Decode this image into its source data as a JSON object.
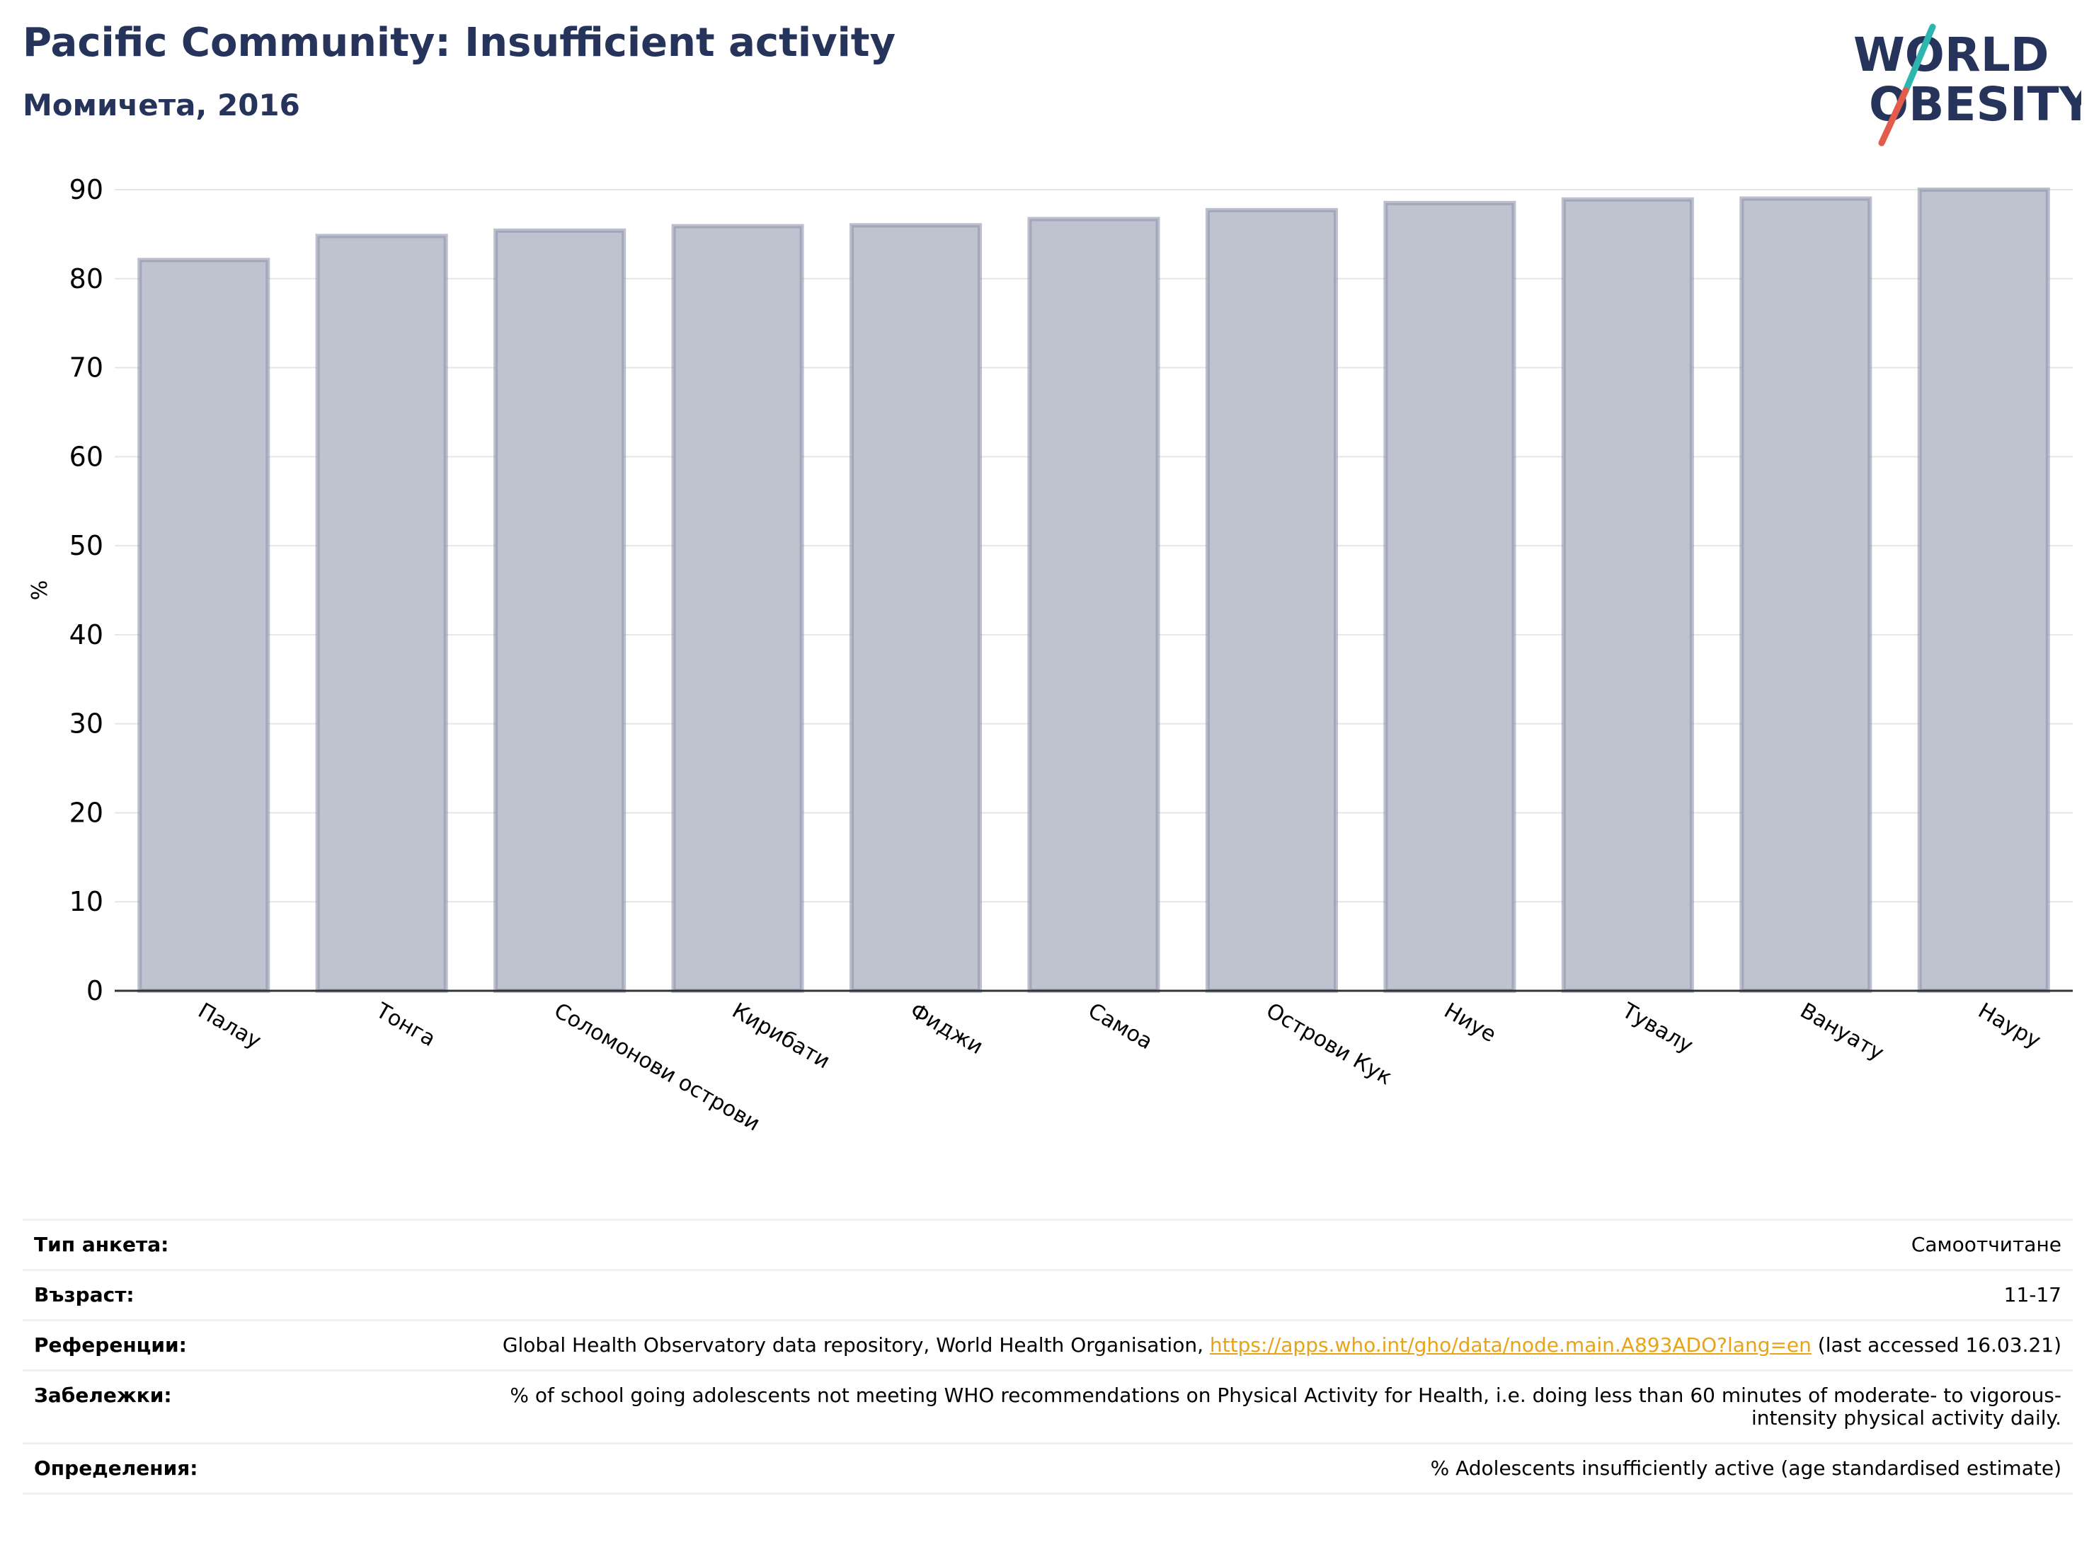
{
  "header": {
    "title": "Pacific Community: Insufficient activity",
    "subtitle": "Момичета, 2016",
    "logo_line1": "WORLD",
    "logo_line2": "OBESITY"
  },
  "colors": {
    "title": "#26345c",
    "bar_fill": "#bfc2cf",
    "bar_edge": "#8f94ab",
    "link": "#e8a317",
    "logo_teal": "#2fb5b0",
    "logo_red": "#e35b4a"
  },
  "chart_data": {
    "type": "bar",
    "categories": [
      "Палау",
      "Тонга",
      "Соломонови острови",
      "Кирибати",
      "Фиджи",
      "Самоа",
      "Острови Кук",
      "Ниуе",
      "Тувалу",
      "Вануату",
      "Науру"
    ],
    "values": [
      82.1,
      84.8,
      85.4,
      85.9,
      86.0,
      86.7,
      87.7,
      88.5,
      88.9,
      89.0,
      90.0
    ],
    "ylabel": "%",
    "ylim": [
      0,
      90
    ],
    "yticks": [
      0,
      10,
      20,
      30,
      40,
      50,
      60,
      70,
      80,
      90
    ],
    "grid": true
  },
  "meta": [
    {
      "key": "Тип анкета:",
      "value": "Самоотчитане"
    },
    {
      "key": "Възраст:",
      "value": "11-17"
    },
    {
      "key": "Референции:",
      "value_pre": "Global Health Observatory data repository, World Health Organisation, ",
      "link": "https://apps.who.int/gho/data/node.main.A893ADO?lang=en",
      "value_post": " (last accessed 16.03.21)"
    },
    {
      "key": "Забележки:",
      "value": "% of school going adolescents not meeting WHO recommendations on Physical Activity for Health, i.e. doing less than 60 minutes of moderate- to vigorous-intensity physical activity daily."
    },
    {
      "key": "Определения:",
      "value": "% Adolescents insufficiently active (age standardised estimate)"
    }
  ]
}
